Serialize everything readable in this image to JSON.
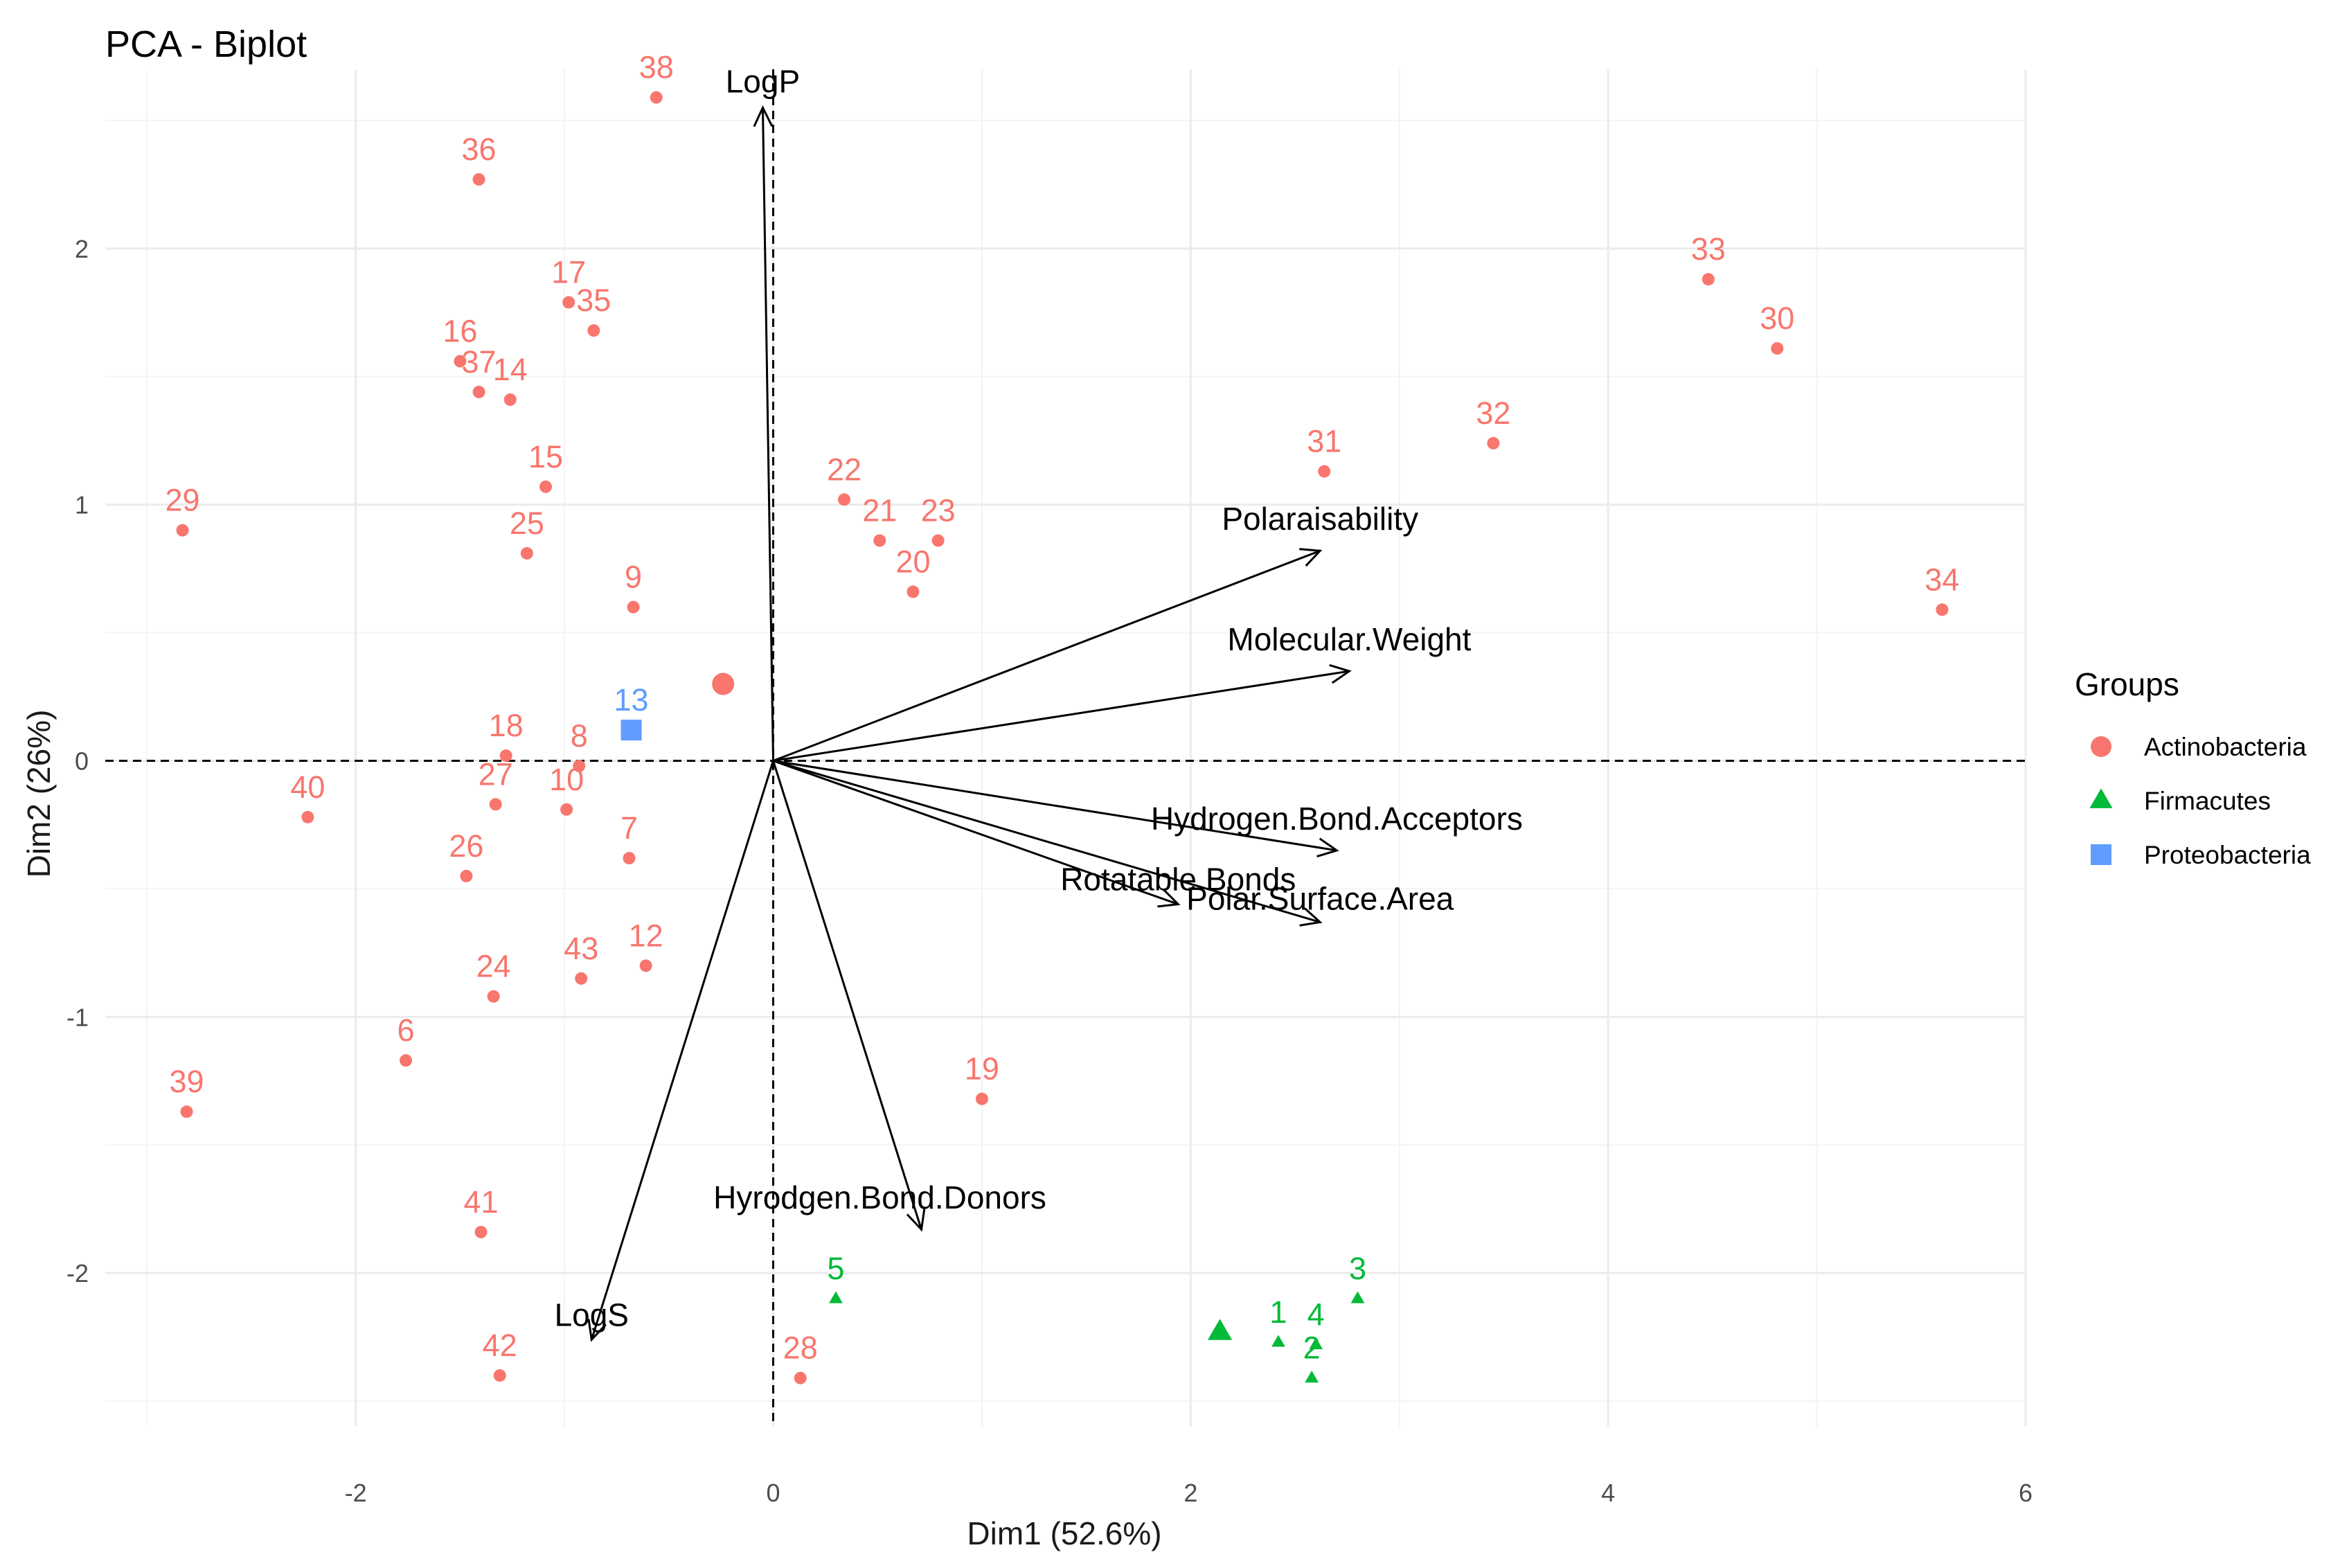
{
  "chart_data": {
    "type": "scatter",
    "subtype": "pca-biplot",
    "title": "PCA - Biplot",
    "xlabel": "Dim1 (52.6%)",
    "ylabel": "Dim2 (26%)",
    "xlim": [
      -3.2,
      6.0
    ],
    "ylim": [
      -2.6,
      2.7
    ],
    "x_ticks": [
      -2,
      0,
      2,
      4,
      6
    ],
    "y_ticks": [
      -2,
      -1,
      0,
      1,
      2
    ],
    "x_tick_labels": [
      "-2",
      "0",
      "2",
      "4",
      "6"
    ],
    "y_tick_labels": [
      "-2",
      "-1",
      "0",
      "1",
      "2"
    ],
    "grid": true,
    "legend": {
      "title": "Groups",
      "position": "right",
      "items": [
        {
          "name": "Actinobacteria",
          "color": "#F8766D",
          "shape": "circle"
        },
        {
          "name": "Firmacutes",
          "color": "#00BA38",
          "shape": "triangle"
        },
        {
          "name": "Proteobacteria",
          "color": "#619CFF",
          "shape": "square"
        }
      ]
    },
    "series": [
      {
        "name": "Actinobacteria",
        "color": "#F8766D",
        "shape": "circle",
        "points": [
          {
            "label": "38",
            "x": -0.56,
            "y": 2.59
          },
          {
            "label": "36",
            "x": -1.41,
            "y": 2.27
          },
          {
            "label": "17",
            "x": -0.98,
            "y": 1.79
          },
          {
            "label": "35",
            "x": -0.86,
            "y": 1.68
          },
          {
            "label": "16",
            "x": -1.5,
            "y": 1.56
          },
          {
            "label": "37",
            "x": -1.41,
            "y": 1.44
          },
          {
            "label": "14",
            "x": -1.26,
            "y": 1.41
          },
          {
            "label": "15",
            "x": -1.09,
            "y": 1.07
          },
          {
            "label": "29",
            "x": -2.83,
            "y": 0.9
          },
          {
            "label": "25",
            "x": -1.18,
            "y": 0.81
          },
          {
            "label": "9",
            "x": -0.67,
            "y": 0.6
          },
          {
            "label": "22",
            "x": 0.34,
            "y": 1.02
          },
          {
            "label": "21",
            "x": 0.51,
            "y": 0.86
          },
          {
            "label": "23",
            "x": 0.79,
            "y": 0.86
          },
          {
            "label": "20",
            "x": 0.67,
            "y": 0.66
          },
          {
            "label": "31",
            "x": 2.64,
            "y": 1.13
          },
          {
            "label": "32",
            "x": 3.45,
            "y": 1.24
          },
          {
            "label": "33",
            "x": 4.48,
            "y": 1.88
          },
          {
            "label": "30",
            "x": 4.81,
            "y": 1.61
          },
          {
            "label": "34",
            "x": 5.6,
            "y": 0.59
          },
          {
            "label": "18",
            "x": -1.28,
            "y": 0.02
          },
          {
            "label": "8",
            "x": -0.93,
            "y": -0.02
          },
          {
            "label": "27",
            "x": -1.33,
            "y": -0.17
          },
          {
            "label": "10",
            "x": -0.99,
            "y": -0.19
          },
          {
            "label": "40",
            "x": -2.23,
            "y": -0.22
          },
          {
            "label": "7",
            "x": -0.69,
            "y": -0.38
          },
          {
            "label": "26",
            "x": -1.47,
            "y": -0.45
          },
          {
            "label": "12",
            "x": -0.61,
            "y": -0.8
          },
          {
            "label": "43",
            "x": -0.92,
            "y": -0.85
          },
          {
            "label": "24",
            "x": -1.34,
            "y": -0.92
          },
          {
            "label": "6",
            "x": -1.76,
            "y": -1.17
          },
          {
            "label": "39",
            "x": -2.81,
            "y": -1.37
          },
          {
            "label": "19",
            "x": 1.0,
            "y": -1.32
          },
          {
            "label": "41",
            "x": -1.4,
            "y": -1.84
          },
          {
            "label": "42",
            "x": -1.31,
            "y": -2.4
          },
          {
            "label": "28",
            "x": 0.13,
            "y": -2.41
          }
        ],
        "centroid": {
          "x": -0.24,
          "y": 0.3
        }
      },
      {
        "name": "Firmacutes",
        "color": "#00BA38",
        "shape": "triangle",
        "points": [
          {
            "label": "5",
            "x": 0.3,
            "y": -2.1
          },
          {
            "label": "3",
            "x": 2.8,
            "y": -2.1
          },
          {
            "label": "1",
            "x": 2.42,
            "y": -2.27
          },
          {
            "label": "4",
            "x": 2.6,
            "y": -2.28
          },
          {
            "label": "2",
            "x": 2.58,
            "y": -2.41
          }
        ],
        "centroid": {
          "x": 2.14,
          "y": -2.23
        }
      },
      {
        "name": "Proteobacteria",
        "color": "#619CFF",
        "shape": "square",
        "points": [
          {
            "label": "13",
            "x": -0.68,
            "y": 0.12
          }
        ],
        "centroid": {
          "x": -0.68,
          "y": 0.12
        }
      }
    ],
    "variables": [
      {
        "name": "LogP",
        "x": -0.05,
        "y": 2.55
      },
      {
        "name": "Polaraisability",
        "x": 2.62,
        "y": 0.82
      },
      {
        "name": "Molecular.Weight",
        "x": 2.76,
        "y": 0.35
      },
      {
        "name": "Hydrogen.Bond.Acceptors",
        "x": 2.7,
        "y": -0.35
      },
      {
        "name": "Rotatable.Bonds",
        "x": 1.94,
        "y": -0.56
      },
      {
        "name": "Polar.Surface.Area",
        "x": 2.62,
        "y": -0.63
      },
      {
        "name": "Hyrodgen.Bond.Donors",
        "x": 0.71,
        "y": -1.83
      },
      {
        "name": "LogS",
        "x": -0.87,
        "y": -2.26
      }
    ]
  }
}
